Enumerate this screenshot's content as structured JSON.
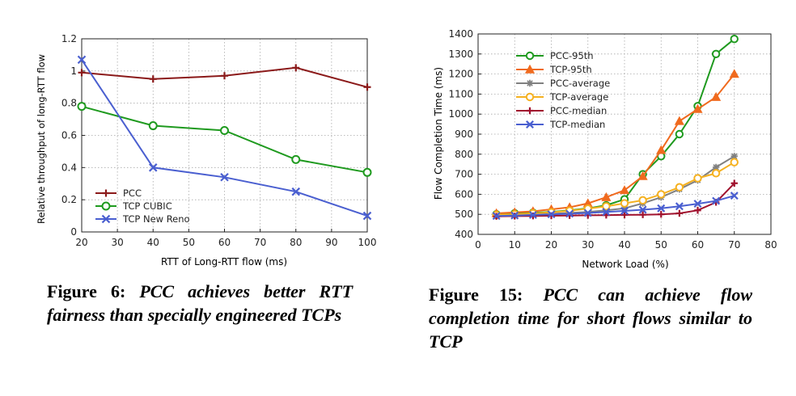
{
  "figures": [
    {
      "label": "Figure 6:",
      "text": "PCC achieves better RTT fairness than specially engineered TCPs"
    },
    {
      "label": "Figure 15:",
      "text": "PCC can achieve flow completion time for short flows similar to TCP"
    }
  ],
  "chart_data": [
    {
      "type": "line",
      "xlabel": "RTT of Long-RTT flow (ms)",
      "ylabel": "Relative throughput of long-RTT flow",
      "xlim": [
        20,
        100
      ],
      "ylim": [
        0,
        1.2
      ],
      "xticks": [
        "20",
        "30",
        "40",
        "50",
        "60",
        "70",
        "80",
        "90",
        "100"
      ],
      "xtick_values": [
        20,
        30,
        40,
        50,
        60,
        70,
        80,
        90,
        100
      ],
      "yticks": [
        "0",
        "0.2",
        "0.4",
        "0.6",
        "0.8",
        "1",
        "1.2"
      ],
      "ytick_values": [
        0,
        0.2,
        0.4,
        0.6,
        0.8,
        1,
        1.2
      ],
      "grid": true,
      "legend_position": "bottom-left",
      "series": [
        {
          "name": "PCC",
          "color": "#8b1a1a",
          "marker": "plus",
          "x": [
            20,
            40,
            60,
            80,
            100
          ],
          "y": [
            0.99,
            0.95,
            0.97,
            1.02,
            0.9
          ]
        },
        {
          "name": "TCP CUBIC",
          "color": "#1f9a1f",
          "marker": "circle",
          "x": [
            20,
            40,
            60,
            80,
            100
          ],
          "y": [
            0.78,
            0.66,
            0.63,
            0.45,
            0.37
          ]
        },
        {
          "name": "TCP New Reno",
          "color": "#4a5fd0",
          "marker": "x",
          "x": [
            20,
            40,
            60,
            80,
            100
          ],
          "y": [
            1.07,
            0.4,
            0.34,
            0.25,
            0.1
          ]
        }
      ]
    },
    {
      "type": "line",
      "xlabel": "Network Load (%)",
      "ylabel": "Flow Completion Time (ms)",
      "xlim": [
        0,
        80
      ],
      "ylim": [
        400,
        1400
      ],
      "xticks": [
        "0",
        "10",
        "20",
        "30",
        "40",
        "50",
        "60",
        "70",
        "80"
      ],
      "xtick_values": [
        0,
        10,
        20,
        30,
        40,
        50,
        60,
        70,
        80
      ],
      "yticks": [
        "400",
        "500",
        "600",
        "700",
        "800",
        "900",
        "1000",
        "1100",
        "1200",
        "1300",
        "1400"
      ],
      "ytick_values": [
        400,
        500,
        600,
        700,
        800,
        900,
        1000,
        1100,
        1200,
        1300,
        1400
      ],
      "grid": true,
      "legend_position": "top-left",
      "series": [
        {
          "name": "PCC-95th",
          "color": "#1f9a1f",
          "marker": "circle",
          "x": [
            5,
            10,
            15,
            20,
            25,
            30,
            35,
            40,
            45,
            50,
            55,
            60,
            65,
            70
          ],
          "y": [
            500,
            505,
            508,
            512,
            520,
            530,
            545,
            575,
            700,
            790,
            900,
            1040,
            1300,
            1375
          ]
        },
        {
          "name": "TCP-95th",
          "color": "#f06a1e",
          "marker": "triangle",
          "x": [
            5,
            10,
            15,
            20,
            25,
            30,
            35,
            40,
            45,
            50,
            55,
            60,
            65,
            70
          ],
          "y": [
            505,
            510,
            515,
            525,
            535,
            555,
            585,
            620,
            690,
            820,
            965,
            1025,
            1085,
            1200
          ]
        },
        {
          "name": "PCC-average",
          "color": "#808080",
          "marker": "asterisk",
          "x": [
            5,
            10,
            15,
            20,
            25,
            30,
            35,
            40,
            45,
            50,
            55,
            60,
            65,
            70
          ],
          "y": [
            495,
            497,
            500,
            503,
            507,
            512,
            520,
            530,
            555,
            585,
            625,
            670,
            735,
            790
          ]
        },
        {
          "name": "TCP-average",
          "color": "#f5b120",
          "marker": "circle",
          "x": [
            5,
            10,
            15,
            20,
            25,
            30,
            35,
            40,
            45,
            50,
            55,
            60,
            65,
            70
          ],
          "y": [
            497,
            500,
            505,
            510,
            518,
            528,
            540,
            555,
            570,
            600,
            635,
            680,
            705,
            760
          ]
        },
        {
          "name": "PCC-median",
          "color": "#a0122e",
          "marker": "plus",
          "x": [
            5,
            10,
            15,
            20,
            25,
            30,
            35,
            40,
            45,
            50,
            55,
            60,
            65,
            70
          ],
          "y": [
            490,
            491,
            492,
            493,
            494,
            495,
            496,
            497,
            498,
            500,
            505,
            520,
            560,
            655
          ]
        },
        {
          "name": "TCP-median",
          "color": "#4a5fd0",
          "marker": "x",
          "x": [
            5,
            10,
            15,
            20,
            25,
            30,
            35,
            40,
            45,
            50,
            55,
            60,
            65,
            70
          ],
          "y": [
            492,
            494,
            497,
            500,
            503,
            507,
            512,
            517,
            523,
            530,
            540,
            553,
            567,
            593
          ]
        }
      ]
    }
  ]
}
